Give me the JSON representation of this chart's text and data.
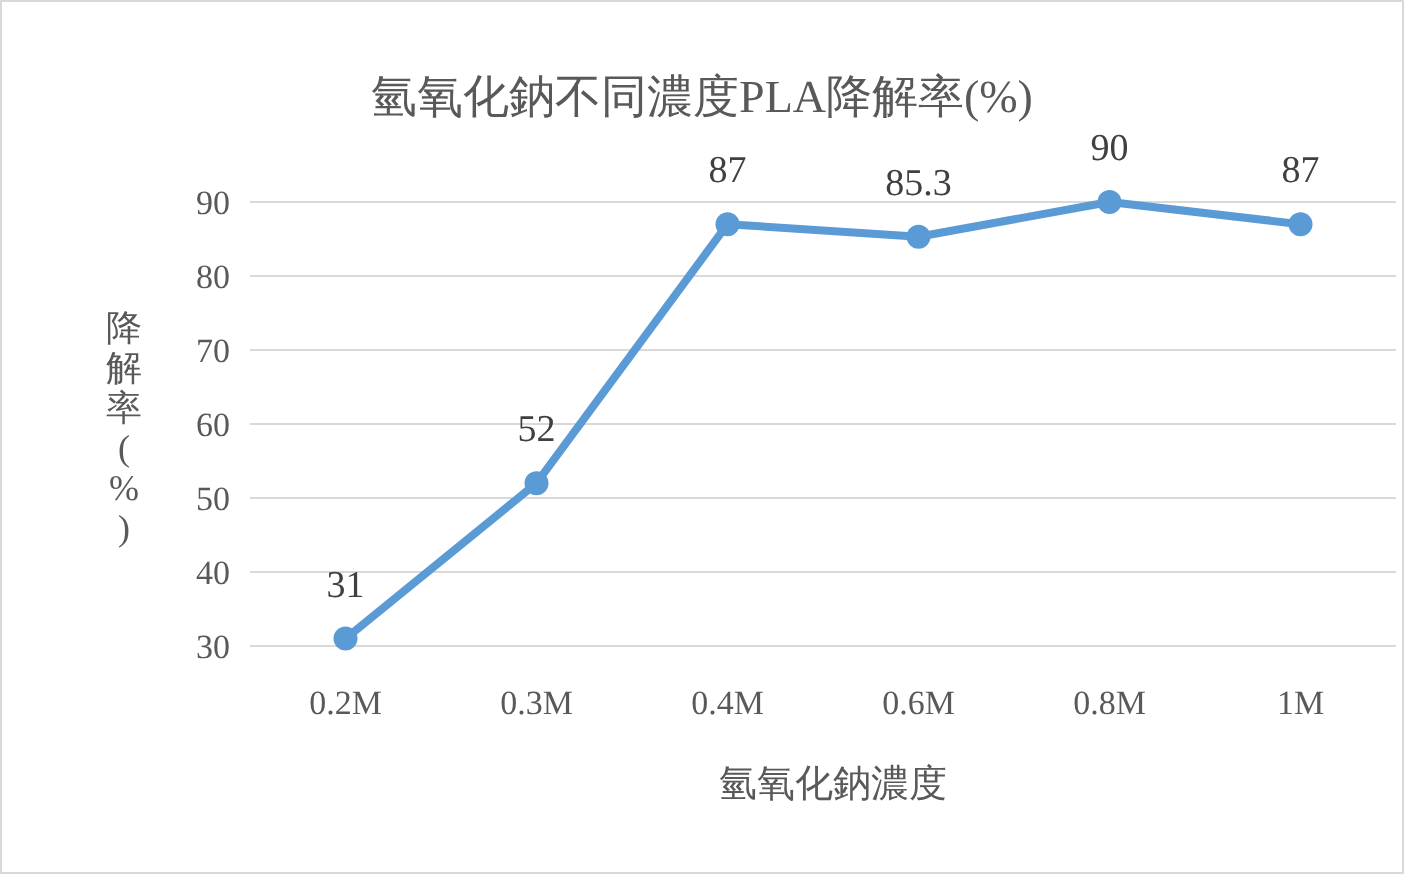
{
  "chart_data": {
    "type": "line",
    "title": "氫氧化鈉不同濃度PLA降解率(%)",
    "xlabel": "氫氧化鈉濃度",
    "ylabel": "降解率(%)",
    "categories": [
      "0.2M",
      "0.3M",
      "0.4M",
      "0.6M",
      "0.8M",
      "1M"
    ],
    "series": [
      {
        "color": "#5b9bd5",
        "values": [
          31,
          52,
          87,
          85.3,
          90,
          87
        ]
      }
    ],
    "ylim": [
      30,
      90
    ],
    "yticks": [
      30,
      40,
      50,
      60,
      70,
      80,
      90
    ],
    "grid": "y",
    "marker": "circle",
    "line_style": "solid",
    "data_labels": true
  }
}
